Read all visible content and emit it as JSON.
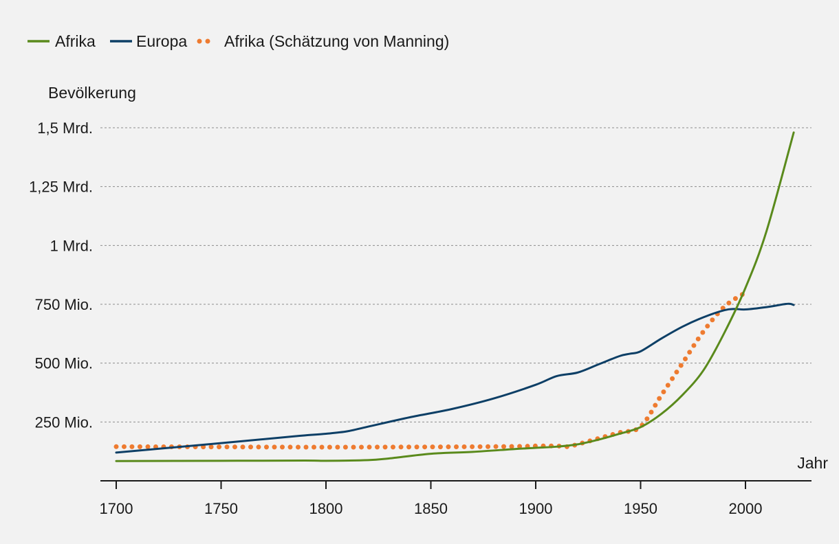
{
  "chart_data": {
    "type": "line",
    "title": "",
    "ylabel": "Bevölkerung",
    "xlabel": "Jahr",
    "xlim": [
      1697,
      2030
    ],
    "ylim": [
      0,
      1500000000
    ],
    "grid": true,
    "legend_position": "top-left",
    "xticks": [
      {
        "value": 1700,
        "label": "1700"
      },
      {
        "value": 1750,
        "label": "1750"
      },
      {
        "value": 1800,
        "label": "1800"
      },
      {
        "value": 1850,
        "label": "1850"
      },
      {
        "value": 1900,
        "label": "1900"
      },
      {
        "value": 1950,
        "label": "1950"
      },
      {
        "value": 2000,
        "label": "2000"
      }
    ],
    "yticks": [
      {
        "value": 250000000,
        "label": "250 Mio."
      },
      {
        "value": 500000000,
        "label": "500 Mio."
      },
      {
        "value": 750000000,
        "label": "750 Mio."
      },
      {
        "value": 1000000000,
        "label": "1 Mrd."
      },
      {
        "value": 1250000000,
        "label": "1,25 Mrd."
      },
      {
        "value": 1500000000,
        "label": "1,5 Mrd."
      }
    ],
    "series": [
      {
        "name": "Afrika",
        "color": "#5a8a1c",
        "style": "solid",
        "x": [
          1700,
          1750,
          1790,
          1800,
          1820,
          1830,
          1850,
          1870,
          1890,
          1900,
          1910,
          1920,
          1930,
          1940,
          1950,
          1960,
          1970,
          1980,
          1990,
          2000,
          2010,
          2023
        ],
        "y": [
          84000000,
          85000000,
          86000000,
          85000000,
          88000000,
          95000000,
          115000000,
          123000000,
          135000000,
          140000000,
          145000000,
          155000000,
          175000000,
          200000000,
          228000000,
          285000000,
          365000000,
          470000000,
          630000000,
          820000000,
          1060000000,
          1480000000
        ]
      },
      {
        "name": "Europa",
        "color": "#0d3f66",
        "style": "solid",
        "x": [
          1700,
          1750,
          1780,
          1790,
          1800,
          1810,
          1820,
          1840,
          1860,
          1880,
          1900,
          1910,
          1920,
          1930,
          1940,
          1945,
          1950,
          1960,
          1970,
          1980,
          1990,
          1995,
          2000,
          2010,
          2020,
          2023
        ],
        "y": [
          120000000,
          160000000,
          185000000,
          193000000,
          200000000,
          210000000,
          230000000,
          270000000,
          305000000,
          350000000,
          408000000,
          445000000,
          460000000,
          495000000,
          530000000,
          540000000,
          550000000,
          605000000,
          655000000,
          695000000,
          725000000,
          730000000,
          728000000,
          738000000,
          752000000,
          747000000
        ]
      },
      {
        "name": "Afrika (Schätzung von Manning)",
        "color": "#ee7b30",
        "style": "dotted",
        "x": [
          1700,
          1750,
          1800,
          1850,
          1890,
          1900,
          1910,
          1915,
          1920,
          1930,
          1940,
          1950,
          1960,
          1970,
          1980,
          1990,
          2000
        ],
        "y": [
          145000000,
          144000000,
          143000000,
          144000000,
          146000000,
          148000000,
          148000000,
          145000000,
          155000000,
          180000000,
          205000000,
          230000000,
          365000000,
          500000000,
          635000000,
          740000000,
          800000000
        ]
      }
    ]
  }
}
